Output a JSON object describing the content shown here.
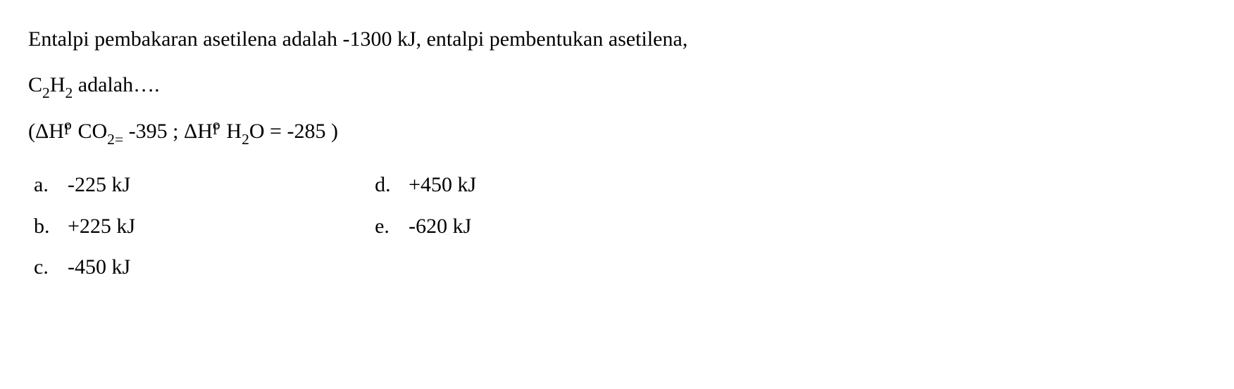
{
  "question": {
    "line1_pre": "Entalpi pembakaran asetilena adalah -1300 kJ, entalpi pembentukan asetilena,",
    "line2_formula_c": "C",
    "line2_sub1": "2",
    "line2_formula_h": "H",
    "line2_sub2": "2",
    "line2_rest": " adalah….",
    "line3_open": "(ΔH",
    "line3_f": "f",
    "line3_o": "o",
    "line3_co": "CO",
    "line3_co_sub": "2",
    "line3_eq1": " = ",
    "line3_val1": "-395 ; ΔH",
    "line3_h2o_h": "H",
    "line3_h2o_sub": "2",
    "line3_h2o_o": "O = -285 )"
  },
  "options": {
    "a_letter": "a.",
    "a_text": "-225 kJ",
    "b_letter": "b.",
    "b_text": "+225 kJ",
    "c_letter": "c.",
    "c_text": "-450 kJ",
    "d_letter": "d.",
    "d_text": "+450 kJ",
    "e_letter": "e.",
    "e_text": "-620 kJ"
  }
}
